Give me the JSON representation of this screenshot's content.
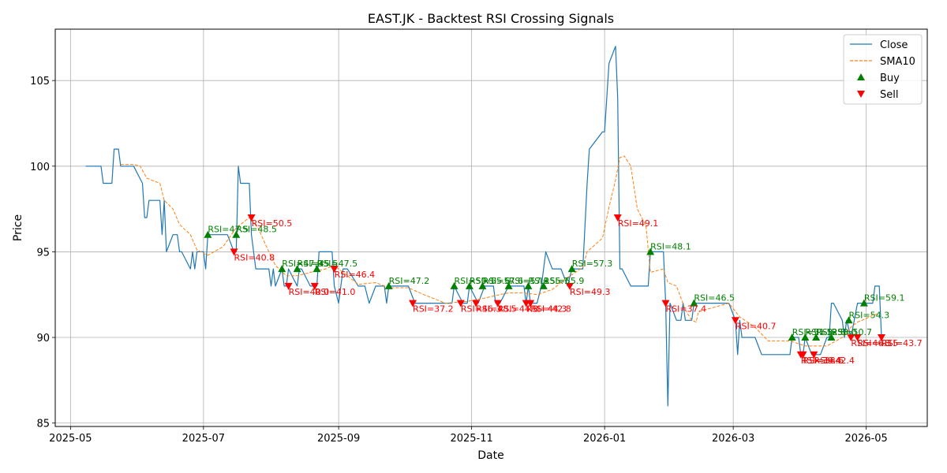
{
  "chart_data": {
    "type": "line",
    "title": "EAST.JK - Backtest RSI Crossing Signals",
    "xlabel": "Date",
    "ylabel": "Price",
    "xlim": [
      "2025-04-24",
      "2026-05-29"
    ],
    "ylim": [
      84.8,
      108.0
    ],
    "grid": true,
    "legend_position": "top-right",
    "x_ticks": [
      "2025-05-01",
      "2025-07-01",
      "2025-09-01",
      "2025-11-01",
      "2026-01-01",
      "2026-03-01",
      "2026-05-01"
    ],
    "x_tick_labels": [
      "2025-05",
      "2025-07",
      "2025-09",
      "2025-11",
      "2026-01",
      "2026-03",
      "2026-05"
    ],
    "y_ticks": [
      85,
      90,
      95,
      100,
      105
    ],
    "series": [
      {
        "name": "Close",
        "color": "#1f77b4",
        "style": "solid",
        "points": [
          [
            "2025-05-08",
            100
          ],
          [
            "2025-05-15",
            100
          ],
          [
            "2025-05-16",
            99
          ],
          [
            "2025-05-20",
            99
          ],
          [
            "2025-05-21",
            101
          ],
          [
            "2025-05-23",
            101
          ],
          [
            "2025-05-24",
            100
          ],
          [
            "2025-05-30",
            100
          ],
          [
            "2025-06-03",
            99
          ],
          [
            "2025-06-04",
            97
          ],
          [
            "2025-06-05",
            97
          ],
          [
            "2025-06-06",
            98
          ],
          [
            "2025-06-11",
            98
          ],
          [
            "2025-06-12",
            96
          ],
          [
            "2025-06-13",
            98
          ],
          [
            "2025-06-14",
            95
          ],
          [
            "2025-06-17",
            96
          ],
          [
            "2025-06-19",
            96
          ],
          [
            "2025-06-20",
            95
          ],
          [
            "2025-06-21",
            95
          ],
          [
            "2025-06-25",
            94
          ],
          [
            "2025-06-26",
            95
          ],
          [
            "2025-06-27",
            94
          ],
          [
            "2025-06-28",
            95
          ],
          [
            "2025-07-01",
            95
          ],
          [
            "2025-07-02",
            94
          ],
          [
            "2025-07-03",
            96
          ],
          [
            "2025-07-10",
            96
          ],
          [
            "2025-07-12",
            96
          ],
          [
            "2025-07-15",
            95
          ],
          [
            "2025-07-16",
            95
          ],
          [
            "2025-07-17",
            100
          ],
          [
            "2025-07-18",
            99
          ],
          [
            "2025-07-22",
            99
          ],
          [
            "2025-07-23",
            96
          ],
          [
            "2025-07-25",
            94
          ],
          [
            "2025-07-31",
            94
          ],
          [
            "2025-08-01",
            93
          ],
          [
            "2025-08-02",
            94
          ],
          [
            "2025-08-03",
            93
          ],
          [
            "2025-08-06",
            94
          ],
          [
            "2025-08-07",
            93
          ],
          [
            "2025-08-08",
            93
          ],
          [
            "2025-08-09",
            94
          ],
          [
            "2025-08-13",
            93
          ],
          [
            "2025-08-14",
            94
          ],
          [
            "2025-08-15",
            94
          ],
          [
            "2025-08-19",
            93
          ],
          [
            "2025-08-22",
            93
          ],
          [
            "2025-08-23",
            95
          ],
          [
            "2025-08-29",
            95
          ],
          [
            "2025-08-30",
            93
          ],
          [
            "2025-09-01",
            92
          ],
          [
            "2025-09-03",
            94
          ],
          [
            "2025-09-05",
            94
          ],
          [
            "2025-09-10",
            93
          ],
          [
            "2025-09-12",
            93
          ],
          [
            "2025-09-13",
            93
          ],
          [
            "2025-09-15",
            92
          ],
          [
            "2025-09-18",
            93
          ],
          [
            "2025-09-22",
            93
          ],
          [
            "2025-09-23",
            92
          ],
          [
            "2025-09-24",
            93
          ],
          [
            "2025-10-03",
            93
          ],
          [
            "2025-10-06",
            92
          ],
          [
            "2025-10-23",
            92
          ],
          [
            "2025-10-24",
            93
          ],
          [
            "2025-10-28",
            92
          ],
          [
            "2025-10-30",
            92
          ],
          [
            "2025-10-31",
            93
          ],
          [
            "2025-11-04",
            92
          ],
          [
            "2025-11-07",
            93
          ],
          [
            "2025-11-11",
            93
          ],
          [
            "2025-11-12",
            92
          ],
          [
            "2025-11-14",
            92
          ],
          [
            "2025-11-18",
            93
          ],
          [
            "2025-11-25",
            93
          ],
          [
            "2025-11-26",
            92
          ],
          [
            "2025-11-27",
            93
          ],
          [
            "2025-11-28",
            92
          ],
          [
            "2025-12-01",
            92
          ],
          [
            "2025-12-03",
            93
          ],
          [
            "2025-12-05",
            95
          ],
          [
            "2025-12-08",
            94
          ],
          [
            "2025-12-12",
            94
          ],
          [
            "2025-12-15",
            93
          ],
          [
            "2025-12-17",
            94
          ],
          [
            "2025-12-22",
            94
          ],
          [
            "2025-12-24",
            99
          ],
          [
            "2025-12-25",
            101
          ],
          [
            "2025-12-31",
            102
          ],
          [
            "2026-01-01",
            102
          ],
          [
            "2026-01-03",
            106
          ],
          [
            "2026-01-06",
            107
          ],
          [
            "2026-01-07",
            104
          ],
          [
            "2026-01-08",
            94
          ],
          [
            "2026-01-09",
            94
          ],
          [
            "2026-01-13",
            93
          ],
          [
            "2026-01-21",
            93
          ],
          [
            "2026-01-22",
            95
          ],
          [
            "2026-01-28",
            95
          ],
          [
            "2026-01-29",
            92
          ],
          [
            "2026-01-30",
            86
          ],
          [
            "2026-01-31",
            92
          ],
          [
            "2026-02-03",
            91
          ],
          [
            "2026-02-05",
            91
          ],
          [
            "2026-02-06",
            92
          ],
          [
            "2026-02-07",
            91
          ],
          [
            "2026-02-10",
            91
          ],
          [
            "2026-02-11",
            92
          ],
          [
            "2026-02-27",
            92
          ],
          [
            "2026-03-02",
            91
          ],
          [
            "2026-03-03",
            89
          ],
          [
            "2026-03-04",
            91
          ],
          [
            "2026-03-05",
            90
          ],
          [
            "2026-03-11",
            90
          ],
          [
            "2026-03-14",
            89
          ],
          [
            "2026-03-27",
            89
          ],
          [
            "2026-03-28",
            90
          ],
          [
            "2026-03-31",
            90
          ],
          [
            "2026-04-01",
            89
          ],
          [
            "2026-04-02",
            89
          ],
          [
            "2026-04-03",
            90
          ],
          [
            "2026-04-06",
            89
          ],
          [
            "2026-04-08",
            89
          ],
          [
            "2026-04-10",
            89
          ],
          [
            "2026-04-13",
            90
          ],
          [
            "2026-04-14",
            90
          ],
          [
            "2026-04-15",
            92
          ],
          [
            "2026-04-16",
            92
          ],
          [
            "2026-04-20",
            91
          ],
          [
            "2026-04-21",
            90
          ],
          [
            "2026-04-22",
            91
          ],
          [
            "2026-04-24",
            90
          ],
          [
            "2026-04-27",
            92
          ],
          [
            "2026-05-01",
            92
          ],
          [
            "2026-05-04",
            92
          ],
          [
            "2026-05-05",
            93
          ],
          [
            "2026-05-07",
            93
          ],
          [
            "2026-05-08",
            90
          ]
        ]
      },
      {
        "name": "SMA10",
        "color": "#ff7f0e",
        "style": "dashed",
        "points": [
          [
            "2025-05-24",
            100.1
          ],
          [
            "2025-05-30",
            100.1
          ],
          [
            "2025-06-02",
            100.0
          ],
          [
            "2025-06-05",
            99.3
          ],
          [
            "2025-06-11",
            99.0
          ],
          [
            "2025-06-13",
            98.0
          ],
          [
            "2025-06-17",
            97.5
          ],
          [
            "2025-06-20",
            96.6
          ],
          [
            "2025-06-25",
            96.0
          ],
          [
            "2025-06-28",
            95.1
          ],
          [
            "2025-07-03",
            94.8
          ],
          [
            "2025-07-10",
            95.3
          ],
          [
            "2025-07-16",
            96.4
          ],
          [
            "2025-07-22",
            97.0
          ],
          [
            "2025-07-26",
            96.4
          ],
          [
            "2025-07-31",
            95.0
          ],
          [
            "2025-08-03",
            94.2
          ],
          [
            "2025-08-08",
            93.6
          ],
          [
            "2025-08-13",
            93.6
          ],
          [
            "2025-08-19",
            93.8
          ],
          [
            "2025-08-26",
            94.0
          ],
          [
            "2025-08-30",
            94.2
          ],
          [
            "2025-09-05",
            93.6
          ],
          [
            "2025-09-10",
            93.1
          ],
          [
            "2025-09-18",
            93.2
          ],
          [
            "2025-09-24",
            92.9
          ],
          [
            "2025-10-03",
            92.9
          ],
          [
            "2025-10-10",
            92.5
          ],
          [
            "2025-10-20",
            92.0
          ],
          [
            "2025-10-30",
            92.1
          ],
          [
            "2025-11-07",
            92.3
          ],
          [
            "2025-11-14",
            92.5
          ],
          [
            "2025-11-18",
            92.6
          ],
          [
            "2025-11-25",
            92.6
          ],
          [
            "2025-12-01",
            92.5
          ],
          [
            "2025-12-08",
            92.8
          ],
          [
            "2025-12-15",
            93.5
          ],
          [
            "2025-12-22",
            94.1
          ],
          [
            "2025-12-24",
            95.0
          ],
          [
            "2025-12-31",
            95.8
          ],
          [
            "2026-01-03",
            97.6
          ],
          [
            "2026-01-06",
            99.2
          ],
          [
            "2026-01-08",
            100.5
          ],
          [
            "2026-01-10",
            100.6
          ],
          [
            "2026-01-13",
            100.0
          ],
          [
            "2026-01-16",
            97.5
          ],
          [
            "2026-01-20",
            96.5
          ],
          [
            "2026-01-22",
            93.8
          ],
          [
            "2026-01-28",
            94.0
          ],
          [
            "2026-01-30",
            93.2
          ],
          [
            "2026-02-03",
            93.0
          ],
          [
            "2026-02-07",
            91.6
          ],
          [
            "2026-02-10",
            91.0
          ],
          [
            "2026-02-12",
            90.9
          ],
          [
            "2026-02-13",
            91.5
          ],
          [
            "2026-02-27",
            92.0
          ],
          [
            "2026-03-04",
            91.2
          ],
          [
            "2026-03-11",
            90.6
          ],
          [
            "2026-03-17",
            89.8
          ],
          [
            "2026-03-27",
            89.8
          ],
          [
            "2026-04-03",
            89.5
          ],
          [
            "2026-04-13",
            89.5
          ],
          [
            "2026-04-20",
            90.0
          ],
          [
            "2026-04-24",
            90.6
          ],
          [
            "2026-04-27",
            90.9
          ],
          [
            "2026-05-01",
            91.1
          ],
          [
            "2026-05-04",
            91.3
          ],
          [
            "2026-05-07",
            91.4
          ]
        ]
      }
    ],
    "legend": [
      {
        "name": "Close",
        "kind": "line",
        "color": "#1f77b4"
      },
      {
        "name": "SMA10",
        "kind": "dashed",
        "color": "#ff7f0e"
      },
      {
        "name": "Buy",
        "kind": "triangle-up",
        "color": "#008000"
      },
      {
        "name": "Sell",
        "kind": "triangle-down",
        "color": "#ff0000"
      }
    ],
    "buy_signals": [
      {
        "date": "2025-07-03",
        "price": 96,
        "label": "RSI=47.5"
      },
      {
        "date": "2025-07-16",
        "price": 96,
        "label": "RSI=48.5"
      },
      {
        "date": "2025-08-06",
        "price": 94,
        "label": "RSI=47.0"
      },
      {
        "date": "2025-08-13",
        "price": 94,
        "label": "RSI=45.5"
      },
      {
        "date": "2025-08-22",
        "price": 94,
        "label": "RSI=47.5"
      },
      {
        "date": "2025-09-24",
        "price": 93,
        "label": "RSI=47.2"
      },
      {
        "date": "2025-10-24",
        "price": 93,
        "label": "RSI=50.1"
      },
      {
        "date": "2025-10-31",
        "price": 93,
        "label": "RSI=55.6"
      },
      {
        "date": "2025-11-06",
        "price": 93,
        "label": "RSI=57.6"
      },
      {
        "date": "2025-11-18",
        "price": 93,
        "label": "RSI=57.1"
      },
      {
        "date": "2025-11-27",
        "price": 93,
        "label": "RSI=55.7"
      },
      {
        "date": "2025-12-04",
        "price": 93,
        "label": "RSI=55.9"
      },
      {
        "date": "2025-12-17",
        "price": 94,
        "label": "RSI=57.3"
      },
      {
        "date": "2026-01-22",
        "price": 95,
        "label": "RSI=48.1"
      },
      {
        "date": "2026-02-11",
        "price": 92,
        "label": "RSI=46.5"
      },
      {
        "date": "2026-03-28",
        "price": 90,
        "label": "RSI=51.3"
      },
      {
        "date": "2026-04-03",
        "price": 90,
        "label": "RSI=52.8"
      },
      {
        "date": "2026-04-08",
        "price": 90,
        "label": "RSI=53.0"
      },
      {
        "date": "2026-04-15",
        "price": 90,
        "label": "RSI=50.7"
      },
      {
        "date": "2026-04-23",
        "price": 91,
        "label": "RSI=54.3"
      },
      {
        "date": "2026-04-30",
        "price": 92,
        "label": "RSI=59.1"
      }
    ],
    "sell_signals": [
      {
        "date": "2025-07-15",
        "price": 95,
        "label": "RSI=40.8"
      },
      {
        "date": "2025-07-23",
        "price": 97,
        "label": "RSI=50.5"
      },
      {
        "date": "2025-08-09",
        "price": 93,
        "label": "RSI=40.0"
      },
      {
        "date": "2025-08-21",
        "price": 93,
        "label": "RSI=41.0"
      },
      {
        "date": "2025-08-30",
        "price": 94,
        "label": "RSI=46.4"
      },
      {
        "date": "2025-10-05",
        "price": 92,
        "label": "RSI=37.2"
      },
      {
        "date": "2025-10-27",
        "price": 92,
        "label": "RSI=46.3"
      },
      {
        "date": "2025-11-03",
        "price": 92,
        "label": "RSI=48.5"
      },
      {
        "date": "2025-11-13",
        "price": 92,
        "label": "RSI=44.3"
      },
      {
        "date": "2025-11-26",
        "price": 92,
        "label": "RSI=44.3"
      },
      {
        "date": "2025-11-28",
        "price": 92,
        "label": "RSI=42.8"
      },
      {
        "date": "2025-12-16",
        "price": 93,
        "label": "RSI=49.3"
      },
      {
        "date": "2026-01-07",
        "price": 97,
        "label": "RSI=49.1"
      },
      {
        "date": "2026-01-29",
        "price": 92,
        "label": "RSI=37.4"
      },
      {
        "date": "2026-03-02",
        "price": 91,
        "label": "RSI=40.7"
      },
      {
        "date": "2026-04-01",
        "price": 89,
        "label": "RSI=39.4"
      },
      {
        "date": "2026-04-02",
        "price": 89,
        "label": "RSI=38.6"
      },
      {
        "date": "2026-04-07",
        "price": 89,
        "label": "RSI=42.4"
      },
      {
        "date": "2026-04-24",
        "price": 90,
        "label": "RSI=46.3"
      },
      {
        "date": "2026-04-27",
        "price": 90,
        "label": "RSI=48.5"
      },
      {
        "date": "2026-05-08",
        "price": 90,
        "label": "RSI=43.7"
      }
    ]
  }
}
